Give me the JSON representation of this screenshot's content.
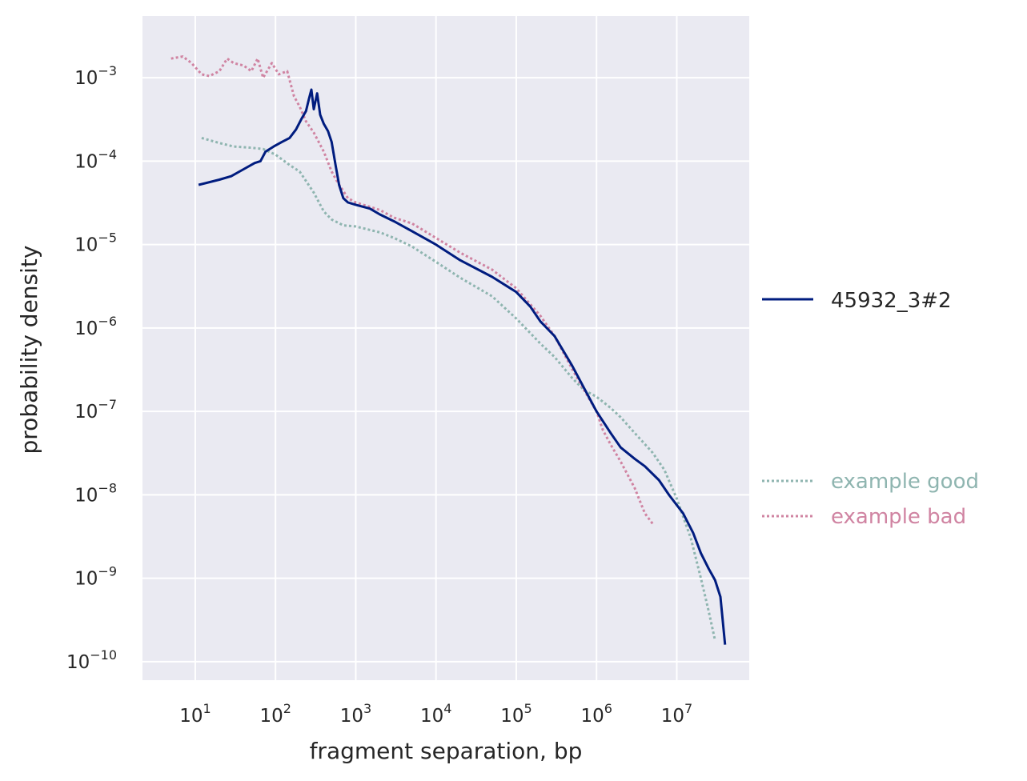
{
  "chart_data": {
    "type": "line",
    "xlabel": "fragment separation, bp",
    "ylabel": "probability density",
    "xscale": "log",
    "yscale": "log",
    "xlim": [
      2.2,
      80000000
    ],
    "ylim": [
      6e-11,
      0.0055
    ],
    "grid": true,
    "x_tick_exponents": [
      1,
      2,
      3,
      4,
      5,
      6,
      7
    ],
    "y_tick_exponents": [
      -3,
      -4,
      -5,
      -6,
      -7,
      -8,
      -9,
      -10
    ],
    "tick_base": "10",
    "legend_main": "right",
    "legend_reference": "lower-right",
    "series": [
      {
        "name": "45932_3#2",
        "color": "#001c7f",
        "style": "solid",
        "points": [
          [
            11,
            5.2e-05
          ],
          [
            20,
            6e-05
          ],
          [
            28,
            6.6e-05
          ],
          [
            40,
            8e-05
          ],
          [
            55,
            9.5e-05
          ],
          [
            65,
            0.0001
          ],
          [
            75,
            0.00013
          ],
          [
            95,
            0.00015
          ],
          [
            120,
            0.00017
          ],
          [
            150,
            0.00019
          ],
          [
            180,
            0.00024
          ],
          [
            210,
            0.00032
          ],
          [
            240,
            0.0004
          ],
          [
            260,
            0.00055
          ],
          [
            280,
            0.00072
          ],
          [
            300,
            0.00042
          ],
          [
            330,
            0.00065
          ],
          [
            360,
            0.00036
          ],
          [
            400,
            0.00028
          ],
          [
            450,
            0.00023
          ],
          [
            500,
            0.00017
          ],
          [
            560,
            9e-05
          ],
          [
            620,
            5.2e-05
          ],
          [
            700,
            3.6e-05
          ],
          [
            800,
            3.2e-05
          ],
          [
            1000,
            3e-05
          ],
          [
            1500,
            2.7e-05
          ],
          [
            2000,
            2.3e-05
          ],
          [
            3000,
            1.9e-05
          ],
          [
            5000,
            1.45e-05
          ],
          [
            10000,
            1e-05
          ],
          [
            20000,
            6.5e-06
          ],
          [
            50000,
            4.1e-06
          ],
          [
            100000,
            2.7e-06
          ],
          [
            150000,
            1.8e-06
          ],
          [
            200000,
            1.2e-06
          ],
          [
            300000,
            8e-07
          ],
          [
            500000,
            3.5e-07
          ],
          [
            700000,
            1.9e-07
          ],
          [
            1000000,
            1e-07
          ],
          [
            1500000,
            5.5e-08
          ],
          [
            2000000,
            3.7e-08
          ],
          [
            3000000,
            2.7e-08
          ],
          [
            4000000,
            2.2e-08
          ],
          [
            6000000,
            1.5e-08
          ],
          [
            8000000,
            1e-08
          ],
          [
            12000000,
            6e-09
          ],
          [
            16000000,
            3.5e-09
          ],
          [
            20000000,
            2e-09
          ],
          [
            25000000,
            1.3e-09
          ],
          [
            30000000,
            9.5e-10
          ],
          [
            35000000,
            6e-10
          ],
          [
            40000000,
            1.6e-10
          ]
        ]
      }
    ],
    "reference_series": [
      {
        "name": "example good",
        "color": "#8fb5b0",
        "style": "dotted",
        "points": [
          [
            12,
            0.00019
          ],
          [
            20,
            0.000165
          ],
          [
            30,
            0.00015
          ],
          [
            50,
            0.000145
          ],
          [
            70,
            0.00014
          ],
          [
            100,
            0.00012
          ],
          [
            150,
            9e-05
          ],
          [
            200,
            7.5e-05
          ],
          [
            300,
            4.2e-05
          ],
          [
            400,
            2.5e-05
          ],
          [
            500,
            2e-05
          ],
          [
            700,
            1.7e-05
          ],
          [
            1000,
            1.65e-05
          ],
          [
            2000,
            1.4e-05
          ],
          [
            3000,
            1.2e-05
          ],
          [
            5000,
            9.5e-06
          ],
          [
            10000,
            6.2e-06
          ],
          [
            20000,
            4e-06
          ],
          [
            50000,
            2.4e-06
          ],
          [
            100000,
            1.3e-06
          ],
          [
            200000,
            6.5e-07
          ],
          [
            300000,
            4.5e-07
          ],
          [
            500000,
            2.5e-07
          ],
          [
            700000,
            1.8e-07
          ],
          [
            1000000,
            1.5e-07
          ],
          [
            1500000,
            1.1e-07
          ],
          [
            2000000,
            8.5e-08
          ],
          [
            3000000,
            5.5e-08
          ],
          [
            5000000,
            3.2e-08
          ],
          [
            7000000,
            2e-08
          ],
          [
            10000000,
            9e-09
          ],
          [
            15000000,
            3e-09
          ],
          [
            20000000,
            1e-09
          ],
          [
            25000000,
            4e-10
          ],
          [
            30000000,
            1.8e-10
          ]
        ]
      },
      {
        "name": "example bad",
        "color": "#d084a2",
        "style": "dotted",
        "points": [
          [
            5,
            0.0017
          ],
          [
            7,
            0.0018
          ],
          [
            9,
            0.0015
          ],
          [
            12,
            0.0011
          ],
          [
            15,
            0.00105
          ],
          [
            20,
            0.0012
          ],
          [
            25,
            0.0017
          ],
          [
            30,
            0.0015
          ],
          [
            40,
            0.0014
          ],
          [
            50,
            0.0012
          ],
          [
            60,
            0.0017
          ],
          [
            70,
            0.001
          ],
          [
            90,
            0.0015
          ],
          [
            110,
            0.0011
          ],
          [
            140,
            0.0012
          ],
          [
            170,
            0.0006
          ],
          [
            200,
            0.00045
          ],
          [
            240,
            0.0003
          ],
          [
            300,
            0.00022
          ],
          [
            400,
            0.00013
          ],
          [
            500,
            7.5e-05
          ],
          [
            600,
            5.5e-05
          ],
          [
            800,
            3.6e-05
          ],
          [
            1000,
            3.2e-05
          ],
          [
            2000,
            2.6e-05
          ],
          [
            3000,
            2.1e-05
          ],
          [
            5000,
            1.8e-05
          ],
          [
            10000,
            1.2e-05
          ],
          [
            20000,
            8e-06
          ],
          [
            50000,
            5e-06
          ],
          [
            100000,
            3e-06
          ],
          [
            200000,
            1.4e-06
          ],
          [
            300000,
            8e-07
          ],
          [
            500000,
            3.2e-07
          ],
          [
            700000,
            1.8e-07
          ],
          [
            1000000,
            1e-07
          ],
          [
            1200000,
            6e-08
          ],
          [
            1500000,
            4e-08
          ],
          [
            2000000,
            2.5e-08
          ],
          [
            3000000,
            1.2e-08
          ],
          [
            4000000,
            6e-09
          ],
          [
            5000000,
            4.5e-09
          ]
        ]
      }
    ]
  }
}
